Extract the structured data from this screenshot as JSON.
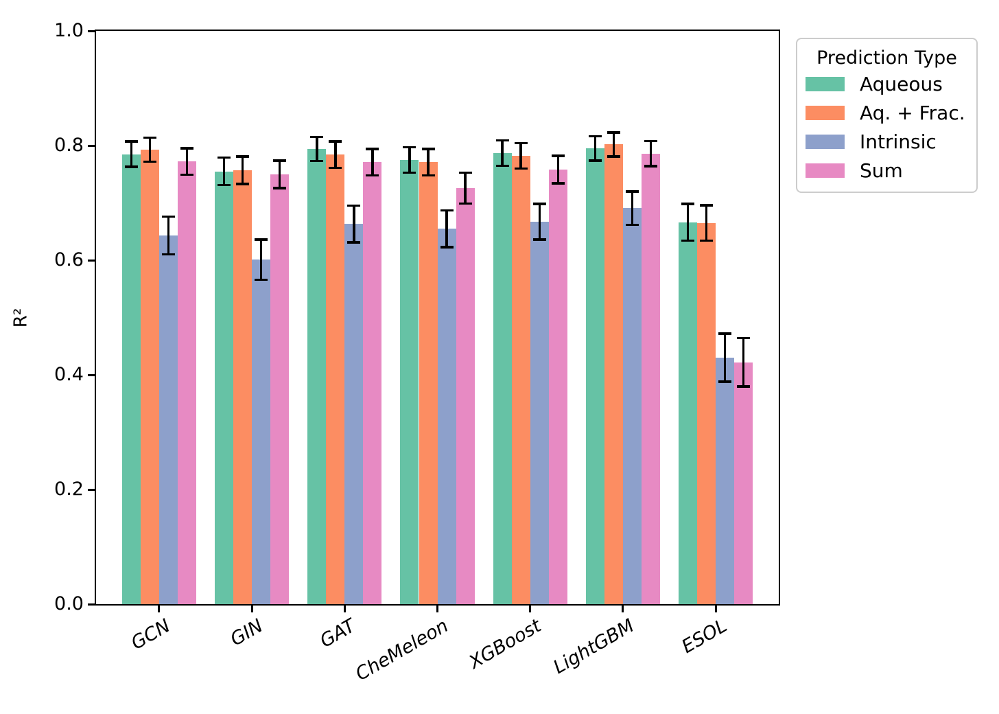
{
  "chart_data": {
    "type": "bar",
    "title": "",
    "xlabel": "",
    "ylabel": "R²",
    "ylim": [
      0.0,
      1.0
    ],
    "grid": false,
    "legend_title": "Prediction Type",
    "legend_position": "outside upper right",
    "ytick_labels": [
      "0.0",
      "0.2",
      "0.4",
      "0.6",
      "0.8",
      "1.0"
    ],
    "categories": [
      "GCN",
      "GIN",
      "GAT",
      "CheMeleon",
      "XGBoost",
      "LightGBM",
      "ESOL"
    ],
    "series": [
      {
        "name": "Aqueous",
        "color": "#66c2a5",
        "values": [
          0.785,
          0.755,
          0.794,
          0.775,
          0.787,
          0.795,
          0.666
        ],
        "errors": [
          0.022,
          0.024,
          0.021,
          0.022,
          0.022,
          0.021,
          0.032
        ]
      },
      {
        "name": "Aq. + Frac.",
        "color": "#fc8d62",
        "values": [
          0.793,
          0.757,
          0.784,
          0.771,
          0.782,
          0.802,
          0.665
        ],
        "errors": [
          0.021,
          0.024,
          0.023,
          0.023,
          0.022,
          0.021,
          0.031
        ]
      },
      {
        "name": "Intrinsic",
        "color": "#8da0cb",
        "values": [
          0.643,
          0.601,
          0.663,
          0.655,
          0.667,
          0.691,
          0.43
        ],
        "errors": [
          0.033,
          0.035,
          0.032,
          0.032,
          0.031,
          0.029,
          0.042
        ]
      },
      {
        "name": "Sum",
        "color": "#e78ac3",
        "values": [
          0.772,
          0.75,
          0.771,
          0.726,
          0.758,
          0.786,
          0.422
        ],
        "errors": [
          0.023,
          0.024,
          0.023,
          0.027,
          0.024,
          0.022,
          0.042
        ]
      }
    ],
    "error_bar_color": "#000000",
    "spine_color": "#000000"
  }
}
